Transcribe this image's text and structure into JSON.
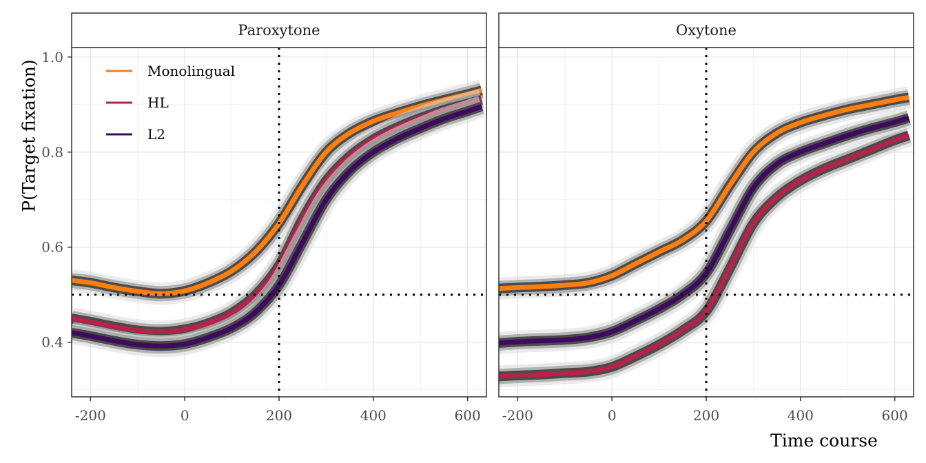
{
  "chart_data": {
    "type": "line",
    "ylabel": "P(Target fixation)",
    "xlabel": "Time course",
    "xlim": [
      -240,
      640
    ],
    "ylim": [
      0.285,
      1.02
    ],
    "x_ticks": [
      -200,
      0,
      200,
      400,
      600
    ],
    "x_tick_labels": [
      "-200",
      "0",
      "200",
      "400",
      "600"
    ],
    "y_ticks": [
      0.4,
      0.6,
      0.8,
      1.0
    ],
    "y_tick_labels": [
      "0.4",
      "0.6",
      "0.8",
      "1.0"
    ],
    "grid": true,
    "legend_position": "top-left",
    "legend": [
      "Monolingual",
      "HL",
      "L2"
    ],
    "colors": {
      "Monolingual": "#ff7f0e",
      "HL": "#b5224a",
      "L2": "#3d0a5e"
    },
    "reference_lines": {
      "vline_x": 200,
      "hline_y": 0.5
    },
    "panels": [
      {
        "title": "Paroxytone",
        "series": [
          {
            "name": "Monolingual",
            "x": [
              -240,
              -200,
              -150,
              -100,
              -50,
              0,
              50,
              100,
              150,
              200,
              250,
              300,
              350,
              400,
              450,
              500,
              550,
              600,
              630
            ],
            "y": [
              0.53,
              0.525,
              0.515,
              0.507,
              0.502,
              0.508,
              0.525,
              0.55,
              0.59,
              0.65,
              0.73,
              0.8,
              0.84,
              0.865,
              0.882,
              0.897,
              0.91,
              0.922,
              0.93
            ]
          },
          {
            "name": "HL",
            "x": [
              -240,
              -200,
              -150,
              -100,
              -50,
              0,
              50,
              100,
              150,
              200,
              250,
              300,
              350,
              400,
              450,
              500,
              550,
              600,
              630
            ],
            "y": [
              0.45,
              0.443,
              0.433,
              0.425,
              0.422,
              0.427,
              0.44,
              0.462,
              0.5,
              0.562,
              0.66,
              0.74,
              0.792,
              0.827,
              0.852,
              0.872,
              0.889,
              0.902,
              0.91
            ]
          },
          {
            "name": "L2",
            "x": [
              -240,
              -200,
              -150,
              -100,
              -50,
              0,
              50,
              100,
              150,
              200,
              250,
              300,
              350,
              400,
              450,
              500,
              550,
              600,
              630
            ],
            "y": [
              0.42,
              0.413,
              0.403,
              0.395,
              0.392,
              0.396,
              0.41,
              0.43,
              0.463,
              0.52,
              0.61,
              0.7,
              0.76,
              0.8,
              0.828,
              0.85,
              0.87,
              0.886,
              0.896
            ]
          }
        ]
      },
      {
        "title": "Oxytone",
        "series": [
          {
            "name": "Monolingual",
            "x": [
              -240,
              -200,
              -150,
              -100,
              -50,
              0,
              50,
              100,
              150,
              200,
              250,
              300,
              350,
              400,
              450,
              500,
              550,
              600,
              630
            ],
            "y": [
              0.513,
              0.515,
              0.517,
              0.52,
              0.525,
              0.54,
              0.565,
              0.59,
              0.615,
              0.655,
              0.73,
              0.8,
              0.84,
              0.862,
              0.877,
              0.89,
              0.9,
              0.91,
              0.915
            ]
          },
          {
            "name": "HL",
            "x": [
              -240,
              -200,
              -150,
              -100,
              -50,
              0,
              50,
              100,
              150,
              200,
              250,
              300,
              350,
              400,
              450,
              500,
              550,
              600,
              630
            ],
            "y": [
              0.328,
              0.33,
              0.332,
              0.335,
              0.338,
              0.348,
              0.37,
              0.395,
              0.425,
              0.465,
              0.555,
              0.65,
              0.705,
              0.74,
              0.765,
              0.785,
              0.805,
              0.825,
              0.835
            ]
          },
          {
            "name": "L2",
            "x": [
              -240,
              -200,
              -150,
              -100,
              -50,
              0,
              50,
              100,
              150,
              200,
              250,
              300,
              350,
              400,
              450,
              500,
              550,
              600,
              630
            ],
            "y": [
              0.398,
              0.401,
              0.403,
              0.405,
              0.41,
              0.422,
              0.445,
              0.47,
              0.5,
              0.545,
              0.635,
              0.725,
              0.775,
              0.8,
              0.818,
              0.835,
              0.85,
              0.863,
              0.872
            ]
          }
        ]
      }
    ]
  }
}
